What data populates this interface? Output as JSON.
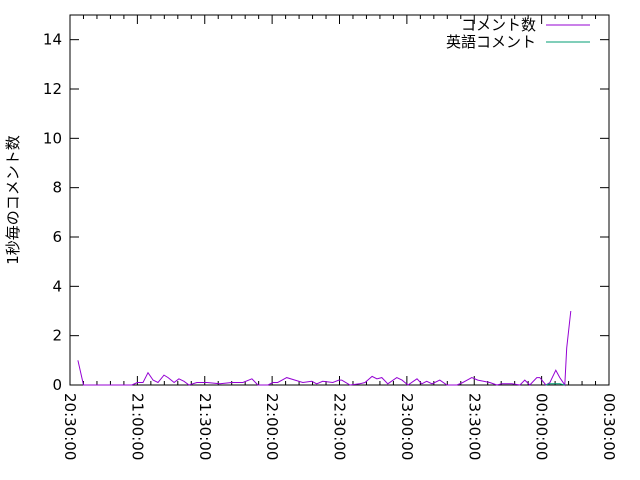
{
  "chart_data": {
    "type": "line",
    "title": "",
    "xlabel": "",
    "ylabel": "1秒毎のコメント数",
    "xlim": [
      "20:30:00",
      "00:30:00"
    ],
    "ylim": [
      0,
      15
    ],
    "x_ticks": [
      "20:30:00",
      "21:00:00",
      "21:30:00",
      "22:00:00",
      "22:30:00",
      "23:00:00",
      "23:30:00",
      "00:00:00",
      "00:30:00"
    ],
    "y_ticks": [
      "0",
      "2",
      "4",
      "6",
      "8",
      "10",
      "12",
      "14"
    ],
    "grid": false,
    "legend": "top-right",
    "series": [
      {
        "name": "コメント数",
        "color": "#9400d3",
        "x": [
          "20:33:30",
          "20:36:00",
          "20:57:30",
          "21:00:00",
          "21:02:30",
          "21:04:45",
          "21:07:00",
          "21:09:10",
          "21:11:50",
          "21:13:40",
          "21:16:20",
          "21:18:30",
          "21:20:45",
          "21:23:00",
          "21:26:30",
          "21:31:00",
          "21:36:45",
          "21:42:00",
          "21:47:00",
          "21:51:00",
          "21:53:40",
          "21:58:10",
          "22:00:20",
          "22:02:30",
          "22:06:30",
          "22:10:10",
          "22:13:40",
          "22:17:40",
          "22:19:50",
          "22:22:30",
          "22:27:00",
          "22:29:40",
          "22:31:00",
          "22:34:40",
          "22:39:00",
          "22:41:20",
          "22:44:30",
          "22:46:40",
          "22:48:50",
          "22:51:30",
          "22:55:30",
          "22:57:50",
          "23:00:30",
          "23:04:30",
          "23:06:40",
          "23:08:50",
          "23:11:10",
          "23:14:40",
          "23:17:50",
          "23:22:20",
          "23:24:55",
          "23:28:55",
          "23:31:35",
          "23:36:55",
          "23:40:05",
          "23:42:20",
          "23:46:45",
          "23:50:20",
          "23:52:30",
          "23:54:45",
          "23:57:50",
          "23:59:10",
          "00:01:55",
          "00:03:40",
          "00:06:20",
          "00:08:05",
          "00:10:20",
          "00:11:10",
          "00:13:00"
        ],
        "y": [
          1,
          0,
          0,
          0.1,
          0.1,
          0.5,
          0.2,
          0.1,
          0.4,
          0.3,
          0.1,
          0.25,
          0.15,
          0,
          0.1,
          0.1,
          0.05,
          0.1,
          0.1,
          0.25,
          0,
          0,
          0.1,
          0.1,
          0.3,
          0.2,
          0.1,
          0.15,
          0.05,
          0.15,
          0.1,
          0.2,
          0.2,
          0,
          0.05,
          0.1,
          0.35,
          0.25,
          0.3,
          0.05,
          0.3,
          0.2,
          0,
          0.25,
          0.05,
          0.15,
          0.05,
          0.2,
          0,
          0,
          0.1,
          0.3,
          0.2,
          0.1,
          0,
          0.05,
          0.05,
          0,
          0.2,
          0,
          0.3,
          0.3,
          0,
          0.1,
          0.6,
          0.3,
          0,
          1.5,
          3.0
        ]
      },
      {
        "name": "英語コメント",
        "color": "#009e73",
        "x": [
          "00:01:55",
          "00:03:40",
          "00:06:20",
          "00:08:05",
          "00:10:20"
        ],
        "y": [
          0,
          0.05,
          0.05,
          0.05,
          0
        ]
      }
    ]
  }
}
